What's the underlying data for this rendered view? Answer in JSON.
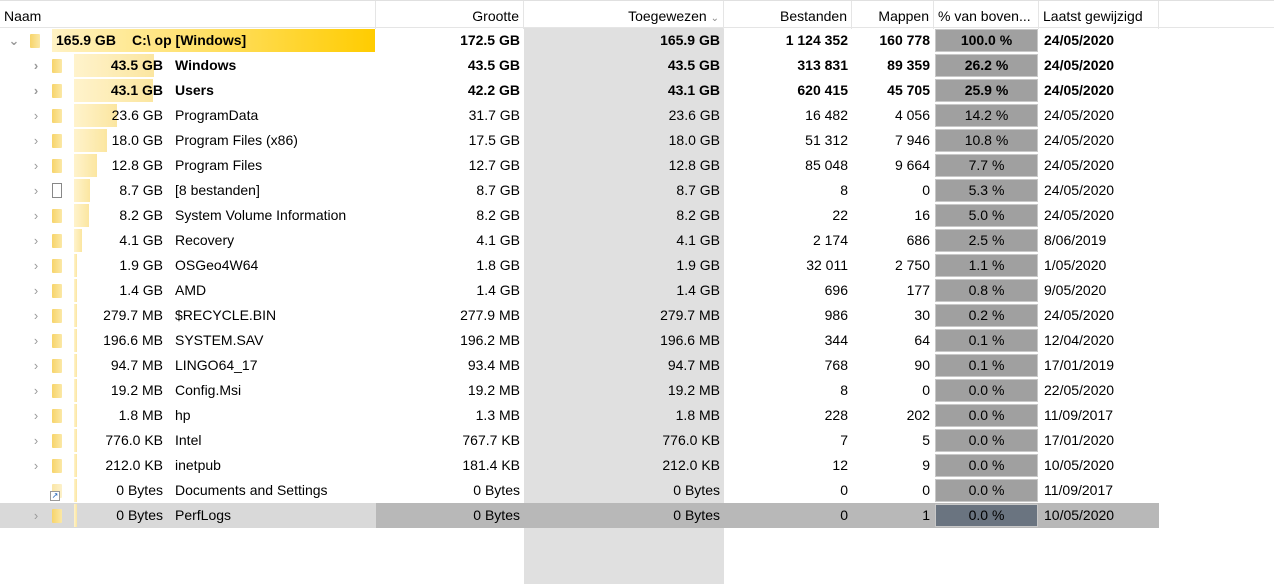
{
  "headers": {
    "name": "Naam",
    "size": "Grootte",
    "allocated": "Toegewezen",
    "files": "Bestanden",
    "folders": "Mappen",
    "percent": "% van boven...",
    "modified": "Laatst gewijzigd"
  },
  "sort_indicator": "chevron-down",
  "colors": {
    "name_bar": "#ffcc00",
    "percent_bar": "#9a9aff",
    "sorted_column": "#e0e0e0",
    "selected_row": "#d9d9d9"
  },
  "rows": [
    {
      "level": 0,
      "icon": "folder",
      "expanded": true,
      "bold": true,
      "pct": 100.0,
      "size_label": "165.9 GB",
      "name": "C:\\  op  [Windows]",
      "size": "172.5 GB",
      "allocated": "165.9 GB",
      "files": "1 124 352",
      "folders": "160 778",
      "percent": "100.0 %",
      "modified": "24/05/2020"
    },
    {
      "level": 1,
      "icon": "folder",
      "bold": true,
      "pct": 26.2,
      "size_label": "43.5 GB",
      "name": "Windows",
      "size": "43.5 GB",
      "allocated": "43.5 GB",
      "files": "313 831",
      "folders": "89 359",
      "percent": "26.2 %",
      "modified": "24/05/2020"
    },
    {
      "level": 1,
      "icon": "folder",
      "bold": true,
      "pct": 25.9,
      "size_label": "43.1 GB",
      "name": "Users",
      "size": "42.2 GB",
      "allocated": "43.1 GB",
      "files": "620 415",
      "folders": "45 705",
      "percent": "25.9 %",
      "modified": "24/05/2020"
    },
    {
      "level": 1,
      "icon": "folder",
      "pct": 14.2,
      "size_label": "23.6 GB",
      "name": "ProgramData",
      "size": "31.7 GB",
      "allocated": "23.6 GB",
      "files": "16 482",
      "folders": "4 056",
      "percent": "14.2 %",
      "modified": "24/05/2020"
    },
    {
      "level": 1,
      "icon": "folder",
      "pct": 10.8,
      "size_label": "18.0 GB",
      "name": "Program Files (x86)",
      "size": "17.5 GB",
      "allocated": "18.0 GB",
      "files": "51 312",
      "folders": "7 946",
      "percent": "10.8 %",
      "modified": "24/05/2020"
    },
    {
      "level": 1,
      "icon": "folder",
      "pct": 7.7,
      "size_label": "12.8 GB",
      "name": "Program Files",
      "size": "12.7 GB",
      "allocated": "12.8 GB",
      "files": "85 048",
      "folders": "9 664",
      "percent": "7.7 %",
      "modified": "24/05/2020"
    },
    {
      "level": 1,
      "icon": "file",
      "pct": 5.3,
      "size_label": "8.7 GB",
      "name": "[8 bestanden]",
      "size": "8.7 GB",
      "allocated": "8.7 GB",
      "files": "8",
      "folders": "0",
      "percent": "5.3 %",
      "modified": "24/05/2020"
    },
    {
      "level": 1,
      "icon": "folder",
      "pct": 5.0,
      "size_label": "8.2 GB",
      "name": "System Volume Information",
      "size": "8.2 GB",
      "allocated": "8.2 GB",
      "files": "22",
      "folders": "16",
      "percent": "5.0 %",
      "modified": "24/05/2020"
    },
    {
      "level": 1,
      "icon": "folder",
      "pct": 2.5,
      "size_label": "4.1 GB",
      "name": "Recovery",
      "size": "4.1 GB",
      "allocated": "4.1 GB",
      "files": "2 174",
      "folders": "686",
      "percent": "2.5 %",
      "modified": "8/06/2019"
    },
    {
      "level": 1,
      "icon": "folder",
      "pct": 1.1,
      "size_label": "1.9 GB",
      "name": "OSGeo4W64",
      "size": "1.8 GB",
      "allocated": "1.9 GB",
      "files": "32 011",
      "folders": "2 750",
      "percent": "1.1 %",
      "modified": "1/05/2020"
    },
    {
      "level": 1,
      "icon": "folder",
      "pct": 0.8,
      "size_label": "1.4 GB",
      "name": "AMD",
      "size": "1.4 GB",
      "allocated": "1.4 GB",
      "files": "696",
      "folders": "177",
      "percent": "0.8 %",
      "modified": "9/05/2020"
    },
    {
      "level": 1,
      "icon": "folder",
      "pct": 0.2,
      "size_label": "279.7 MB",
      "name": "$RECYCLE.BIN",
      "size": "277.9 MB",
      "allocated": "279.7 MB",
      "files": "986",
      "folders": "30",
      "percent": "0.2 %",
      "modified": "24/05/2020"
    },
    {
      "level": 1,
      "icon": "folder",
      "pct": 0.1,
      "size_label": "196.6 MB",
      "name": "SYSTEM.SAV",
      "size": "196.2 MB",
      "allocated": "196.6 MB",
      "files": "344",
      "folders": "64",
      "percent": "0.1 %",
      "modified": "12/04/2020"
    },
    {
      "level": 1,
      "icon": "folder",
      "pct": 0.1,
      "size_label": "94.7 MB",
      "name": "LINGO64_17",
      "size": "93.4 MB",
      "allocated": "94.7 MB",
      "files": "768",
      "folders": "90",
      "percent": "0.1 %",
      "modified": "17/01/2019"
    },
    {
      "level": 1,
      "icon": "folder",
      "pct": 0,
      "size_label": "19.2 MB",
      "name": "Config.Msi",
      "size": "19.2 MB",
      "allocated": "19.2 MB",
      "files": "8",
      "folders": "0",
      "percent": "0.0 %",
      "modified": "22/05/2020"
    },
    {
      "level": 1,
      "icon": "folder",
      "pct": 0,
      "size_label": "1.8 MB",
      "name": "hp",
      "size": "1.3 MB",
      "allocated": "1.8 MB",
      "files": "228",
      "folders": "202",
      "percent": "0.0 %",
      "modified": "11/09/2017"
    },
    {
      "level": 1,
      "icon": "folder",
      "pct": 0,
      "size_label": "776.0 KB",
      "name": "Intel",
      "size": "767.7 KB",
      "allocated": "776.0 KB",
      "files": "7",
      "folders": "5",
      "percent": "0.0 %",
      "modified": "17/01/2020"
    },
    {
      "level": 1,
      "icon": "folder",
      "pct": 0,
      "size_label": "212.0 KB",
      "name": "inetpub",
      "size": "181.4 KB",
      "allocated": "212.0 KB",
      "files": "12",
      "folders": "9",
      "percent": "0.0 %",
      "modified": "10/05/2020"
    },
    {
      "level": 1,
      "icon": "shortcut",
      "nochev": true,
      "pct": 0,
      "size_label": "0 Bytes",
      "name": "Documents and Settings",
      "size": "0 Bytes",
      "allocated": "0 Bytes",
      "files": "0",
      "folders": "0",
      "percent": "0.0 %",
      "modified": "11/09/2017"
    },
    {
      "level": 1,
      "icon": "folder",
      "selected": true,
      "pct": 0,
      "size_label": "0 Bytes",
      "name": "PerfLogs",
      "size": "0 Bytes",
      "allocated": "0 Bytes",
      "files": "0",
      "folders": "1",
      "percent": "0.0 %",
      "modified": "10/05/2020"
    }
  ]
}
